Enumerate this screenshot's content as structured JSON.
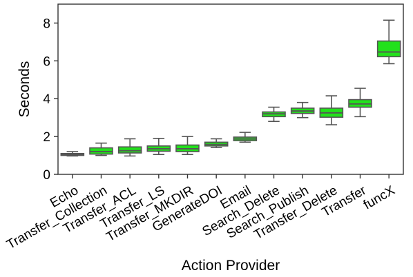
{
  "chart_data": {
    "type": "boxplot",
    "xlabel": "Action Provider",
    "ylabel": "Seconds",
    "ylim": [
      0,
      9
    ],
    "yticks": [
      0,
      2,
      4,
      6,
      8
    ],
    "grid": false,
    "legend": "none",
    "box_color": "#22e11b",
    "edge_color": "#555555",
    "categories": [
      "Echo",
      "Transfer_Collection",
      "Transfer_ACL",
      "Transfer_LS",
      "Transfer_MKDIR",
      "GenerateDOI",
      "Email",
      "Search_Delete",
      "Search_Publish",
      "Transfer_Delete",
      "Transfer",
      "funcX"
    ],
    "boxes": [
      {
        "whisker_low": 0.97,
        "q1": 1.0,
        "median": 1.05,
        "q3": 1.1,
        "whisker_high": 1.2
      },
      {
        "whisker_low": 1.0,
        "q1": 1.07,
        "median": 1.2,
        "q3": 1.4,
        "whisker_high": 1.65
      },
      {
        "whisker_low": 0.97,
        "q1": 1.13,
        "median": 1.25,
        "q3": 1.45,
        "whisker_high": 1.88
      },
      {
        "whisker_low": 1.05,
        "q1": 1.22,
        "median": 1.35,
        "q3": 1.5,
        "whisker_high": 1.9
      },
      {
        "whisker_low": 1.05,
        "q1": 1.2,
        "median": 1.35,
        "q3": 1.55,
        "whisker_high": 2.0
      },
      {
        "whisker_low": 1.42,
        "q1": 1.5,
        "median": 1.58,
        "q3": 1.7,
        "whisker_high": 1.88
      },
      {
        "whisker_low": 1.7,
        "q1": 1.78,
        "median": 1.87,
        "q3": 1.97,
        "whisker_high": 2.22
      },
      {
        "whisker_low": 2.8,
        "q1": 3.05,
        "median": 3.2,
        "q3": 3.3,
        "whisker_high": 3.55
      },
      {
        "whisker_low": 3.0,
        "q1": 3.22,
        "median": 3.35,
        "q3": 3.5,
        "whisker_high": 3.8
      },
      {
        "whisker_low": 2.62,
        "q1": 3.02,
        "median": 3.25,
        "q3": 3.5,
        "whisker_high": 4.15
      },
      {
        "whisker_low": 3.05,
        "q1": 3.55,
        "median": 3.72,
        "q3": 3.95,
        "whisker_high": 4.55
      },
      {
        "whisker_low": 5.85,
        "q1": 6.22,
        "median": 6.47,
        "q3": 7.05,
        "whisker_high": 8.15
      }
    ]
  }
}
